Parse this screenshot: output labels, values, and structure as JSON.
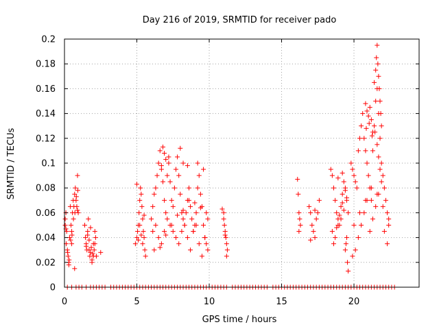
{
  "chart_data": {
    "type": "scatter",
    "title": "Day 216 of 2019, SRMTID for receiver pado",
    "xlabel": "GPS time / hours",
    "ylabel": "SRMTID / TECUs",
    "xlim": [
      0,
      24.5
    ],
    "ylim": [
      0,
      0.2
    ],
    "xticks": [
      0,
      5,
      10,
      15,
      20
    ],
    "xtick_labels": [
      "0",
      "5",
      "10",
      "15",
      "20"
    ],
    "yticks": [
      0,
      0.02,
      0.04,
      0.06,
      0.08,
      0.1,
      0.12,
      0.14,
      0.16,
      0.18,
      0.2
    ],
    "ytick_labels": [
      "0",
      "0.02",
      "0.04",
      "0.06",
      "0.08",
      "0.1",
      "0.12",
      "0.14",
      "0.16",
      "0.18",
      "0.2"
    ],
    "grid": true,
    "marker": "plus",
    "color": "#ff0000",
    "series": [
      {
        "name": "SRMTID",
        "x": [
          0.05,
          0.1,
          0.15,
          0.2,
          0.25,
          0.3,
          0.35,
          0.4,
          0.45,
          0.5,
          0.55,
          0.6,
          0.65,
          0.7,
          0.75,
          0.8,
          0.85,
          0.9,
          0.95,
          0.05,
          0.12,
          0.22,
          0.32,
          0.42,
          0.52,
          0.62,
          0.72,
          0.82,
          0.92,
          0.1,
          0.3,
          0.5,
          0.7,
          0.9,
          1.4,
          1.45,
          1.5,
          1.55,
          1.6,
          1.65,
          1.7,
          1.75,
          1.8,
          1.85,
          1.9,
          1.95,
          2.0,
          2.05,
          2.1,
          2.15,
          2.2,
          2.5,
          1.5,
          1.7,
          1.9,
          2.1,
          1.6,
          1.8,
          2.0,
          4.9,
          5.0,
          5.05,
          5.1,
          5.15,
          5.2,
          5.25,
          5.3,
          5.35,
          5.4,
          5.45,
          5.5,
          5.55,
          5.6,
          5.0,
          5.2,
          5.4,
          5.1,
          5.3,
          5.5,
          6.0,
          6.1,
          6.2,
          6.3,
          6.4,
          6.5,
          6.6,
          6.7,
          6.8,
          6.9,
          7.0,
          7.1,
          7.2,
          7.3,
          7.4,
          7.5,
          7.6,
          7.7,
          7.8,
          7.9,
          8.0,
          8.1,
          8.2,
          8.3,
          8.4,
          8.5,
          8.6,
          8.7,
          8.8,
          8.9,
          9.0,
          9.1,
          9.2,
          9.3,
          9.4,
          9.5,
          9.6,
          9.7,
          9.8,
          9.9,
          6.1,
          6.3,
          6.5,
          6.7,
          6.9,
          7.1,
          7.3,
          7.5,
          7.7,
          7.9,
          8.1,
          8.3,
          8.5,
          8.7,
          8.9,
          9.1,
          9.3,
          9.5,
          9.7,
          9.9,
          6.2,
          6.6,
          7.0,
          7.4,
          7.8,
          8.2,
          8.6,
          9.0,
          9.4,
          9.8,
          6.8,
          6.9,
          7.0,
          8.0,
          8.2,
          6.7,
          7.2,
          8.5,
          9.2,
          9.6,
          10.9,
          11.0,
          11.05,
          11.1,
          11.15,
          11.2,
          11.25,
          11.0,
          11.1,
          11.2,
          16.1,
          16.15,
          16.2,
          16.25,
          16.3,
          16.2,
          16.9,
          17.0,
          17.1,
          17.2,
          17.3,
          17.4,
          17.5,
          17.6,
          17.0,
          17.3,
          18.4,
          18.5,
          18.6,
          18.7,
          18.8,
          18.9,
          19.0,
          19.1,
          19.2,
          19.3,
          19.4,
          19.5,
          19.6,
          18.5,
          18.7,
          18.9,
          19.1,
          19.3,
          19.5,
          18.6,
          18.8,
          19.0,
          19.2,
          19.4,
          18.9,
          19.2,
          19.8,
          19.9,
          20.0,
          20.1,
          20.2,
          20.3,
          20.4,
          20.5,
          20.6,
          20.7,
          20.8,
          20.9,
          21.0,
          21.1,
          21.2,
          21.3,
          21.4,
          21.5,
          21.6,
          21.7,
          21.8,
          21.9,
          22.0,
          22.1,
          22.2,
          22.3,
          22.4,
          19.9,
          20.1,
          20.3,
          20.5,
          20.7,
          20.9,
          21.1,
          21.3,
          21.5,
          21.7,
          21.9,
          22.1,
          22.3,
          20.0,
          20.4,
          20.8,
          21.2,
          21.6,
          22.0,
          22.4,
          21.4,
          21.5,
          21.55,
          21.6,
          21.65,
          21.7,
          21.75,
          21.8,
          21.85,
          21.9,
          21.45,
          21.6,
          21.7,
          21.8,
          20.8,
          20.9,
          21.0,
          21.1,
          21.2,
          21.3,
          20.85,
          21.05,
          21.25,
          19.55,
          19.6,
          19.4,
          19.45,
          19.5,
          0.2,
          0.5,
          0.8,
          1.0,
          1.2,
          1.5,
          1.8,
          2.0,
          2.2,
          2.4,
          2.6,
          2.8,
          3.2,
          3.4,
          3.6,
          3.8,
          4.0,
          4.2,
          4.4,
          4.6,
          4.8,
          5.0,
          5.2,
          5.4,
          5.6,
          5.8,
          6.0,
          6.2,
          6.4,
          6.6,
          6.8,
          7.0,
          7.2,
          7.4,
          7.6,
          7.8,
          8.0,
          8.2,
          8.4,
          8.6,
          8.8,
          9.0,
          9.2,
          9.4,
          9.6,
          9.8,
          10.0,
          10.2,
          10.4,
          10.6,
          10.8,
          11.0,
          11.2,
          11.6,
          11.8,
          12.0,
          12.2,
          12.4,
          12.6,
          12.8,
          13.0,
          13.2,
          13.4,
          13.6,
          13.8,
          14.0,
          14.4,
          14.6,
          14.8,
          15.0,
          15.2,
          15.4,
          15.6,
          15.8,
          16.0,
          16.2,
          16.4,
          16.6,
          16.8,
          17.0,
          17.2,
          17.4,
          17.6,
          17.8,
          18.0,
          18.2,
          18.4,
          18.6,
          18.8,
          19.0,
          19.2,
          19.4,
          19.6,
          19.8,
          20.0,
          20.2,
          20.4,
          20.6,
          20.8,
          21.0,
          21.2,
          21.4,
          21.6,
          21.8,
          22.0,
          22.2,
          22.4,
          22.6,
          22.8
        ],
        "y": [
          0.055,
          0.06,
          0.045,
          0.03,
          0.025,
          0.02,
          0.04,
          0.065,
          0.05,
          0.045,
          0.06,
          0.07,
          0.065,
          0.075,
          0.08,
          0.07,
          0.065,
          0.09,
          0.06,
          0.05,
          0.035,
          0.028,
          0.022,
          0.038,
          0.042,
          0.055,
          0.06,
          0.073,
          0.078,
          0.047,
          0.018,
          0.035,
          0.015,
          0.062,
          0.05,
          0.04,
          0.035,
          0.03,
          0.045,
          0.055,
          0.038,
          0.025,
          0.028,
          0.032,
          0.022,
          0.027,
          0.035,
          0.03,
          0.045,
          0.04,
          0.025,
          0.028,
          0.033,
          0.03,
          0.02,
          0.035,
          0.042,
          0.048,
          0.025,
          0.035,
          0.04,
          0.045,
          0.05,
          0.06,
          0.07,
          0.08,
          0.075,
          0.065,
          0.055,
          0.045,
          0.04,
          0.03,
          0.025,
          0.083,
          0.05,
          0.035,
          0.038,
          0.042,
          0.058,
          0.055,
          0.065,
          0.075,
          0.08,
          0.09,
          0.1,
          0.11,
          0.095,
          0.085,
          0.07,
          0.06,
          0.09,
          0.1,
          0.085,
          0.07,
          0.065,
          0.08,
          0.095,
          0.105,
          0.09,
          0.075,
          0.06,
          0.055,
          0.05,
          0.06,
          0.07,
          0.08,
          0.065,
          0.055,
          0.045,
          0.05,
          0.06,
          0.08,
          0.09,
          0.075,
          0.065,
          0.05,
          0.04,
          0.035,
          0.03,
          0.045,
          0.05,
          0.04,
          0.035,
          0.045,
          0.055,
          0.05,
          0.045,
          0.04,
          0.035,
          0.045,
          0.05,
          0.04,
          0.03,
          0.045,
          0.05,
          0.035,
          0.025,
          0.04,
          0.055,
          0.03,
          0.032,
          0.042,
          0.05,
          0.058,
          0.062,
          0.07,
          0.068,
          0.064,
          0.06,
          0.113,
          0.108,
          0.103,
          0.112,
          0.1,
          0.098,
          0.105,
          0.098,
          0.1,
          0.095,
          0.063,
          0.055,
          0.05,
          0.045,
          0.04,
          0.035,
          0.03,
          0.06,
          0.042,
          0.025,
          0.087,
          0.075,
          0.06,
          0.055,
          0.05,
          0.045,
          0.065,
          0.06,
          0.05,
          0.045,
          0.04,
          0.055,
          0.06,
          0.07,
          0.038,
          0.062,
          0.095,
          0.09,
          0.08,
          0.07,
          0.06,
          0.055,
          0.05,
          0.065,
          0.075,
          0.085,
          0.08,
          0.07,
          0.06,
          0.045,
          0.04,
          0.05,
          0.055,
          0.062,
          0.072,
          0.035,
          0.048,
          0.058,
          0.068,
          0.078,
          0.088,
          0.092,
          0.1,
          0.095,
          0.09,
          0.085,
          0.08,
          0.11,
          0.12,
          0.13,
          0.14,
          0.12,
          0.11,
          0.1,
          0.09,
          0.08,
          0.07,
          0.11,
          0.13,
          0.15,
          0.16,
          0.14,
          0.12,
          0.1,
          0.09,
          0.08,
          0.07,
          0.06,
          0.05,
          0.025,
          0.03,
          0.04,
          0.05,
          0.06,
          0.07,
          0.045,
          0.055,
          0.065,
          0.075,
          0.085,
          0.045,
          0.035,
          0.05,
          0.06,
          0.07,
          0.08,
          0.075,
          0.065,
          0.055,
          0.165,
          0.175,
          0.185,
          0.195,
          0.18,
          0.17,
          0.16,
          0.15,
          0.14,
          0.13,
          0.125,
          0.115,
          0.105,
          0.095,
          0.148,
          0.142,
          0.138,
          0.145,
          0.135,
          0.125,
          0.128,
          0.132,
          0.122,
          0.02,
          0.013,
          0.03,
          0.035,
          0.04,
          0,
          0,
          0,
          0,
          0,
          0,
          0,
          0,
          0,
          0,
          0,
          0,
          0,
          0,
          0,
          0,
          0,
          0,
          0,
          0,
          0,
          0,
          0,
          0,
          0,
          0,
          0,
          0,
          0,
          0,
          0,
          0,
          0,
          0,
          0,
          0,
          0,
          0,
          0,
          0,
          0,
          0,
          0,
          0,
          0,
          0,
          0,
          0,
          0,
          0,
          0,
          0,
          0,
          0,
          0,
          0,
          0,
          0,
          0,
          0,
          0,
          0,
          0,
          0,
          0,
          0,
          0,
          0,
          0,
          0,
          0,
          0,
          0,
          0,
          0,
          0,
          0,
          0,
          0,
          0,
          0,
          0,
          0,
          0,
          0,
          0,
          0,
          0,
          0,
          0,
          0,
          0,
          0,
          0,
          0,
          0,
          0,
          0,
          0,
          0,
          0,
          0,
          0,
          0,
          0,
          0,
          0,
          0,
          0
        ]
      }
    ]
  }
}
